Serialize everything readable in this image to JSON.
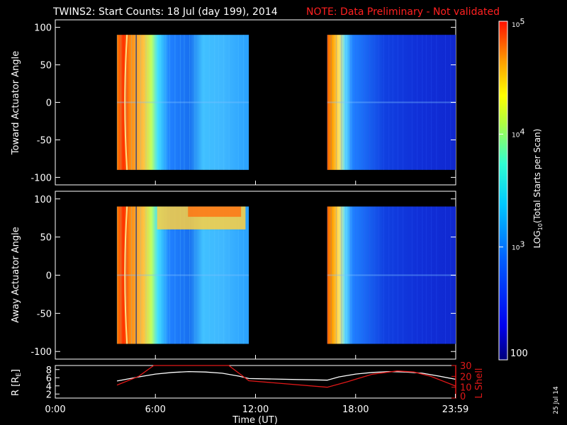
{
  "header": {
    "title": "TWINS2: Start Counts: 18 Jul (day 199), 2014",
    "note": "NOTE: Data Preliminary - Not validated"
  },
  "stamp": "25 Jul 14",
  "colors": {
    "background": "#000000",
    "axes": "#ffffff",
    "note": "#ff2020",
    "lshell": "#e01818",
    "radius": "#ffffff"
  },
  "chart_data": [
    {
      "type": "heatmap",
      "ylabel": "Toward Actuator Angle",
      "ylim": [
        -110,
        110
      ],
      "yticks": [
        100,
        50,
        0,
        -50,
        -100
      ],
      "xlim": [
        0,
        24
      ],
      "segments": [
        {
          "start_hour": 3.7,
          "end_hour": 11.6,
          "peak_hour": 4.3,
          "edge_end_hour": 6.1
        },
        {
          "start_hour": 16.3,
          "end_hour": 24.0,
          "peak_hour": 16.5,
          "edge_end_hour": 17.6
        }
      ],
      "angle_range": [
        -90,
        90
      ]
    },
    {
      "type": "heatmap",
      "ylabel": "Away Actuator Angle",
      "ylim": [
        -110,
        110
      ],
      "yticks": [
        100,
        50,
        0,
        -50,
        -100
      ],
      "xlim": [
        0,
        24
      ],
      "segments": [
        {
          "start_hour": 3.7,
          "end_hour": 11.6,
          "peak_hour": 4.3,
          "edge_end_hour": 6.1
        },
        {
          "start_hour": 16.3,
          "end_hour": 24.0,
          "peak_hour": 16.5,
          "edge_end_hour": 17.6
        }
      ],
      "angle_range": [
        -90,
        90
      ],
      "high_band": {
        "start_hour": 6.1,
        "end_hour": 11.4,
        "angle_min": 60,
        "angle_max": 90
      }
    },
    {
      "type": "line",
      "xlabel": "Time (UT)",
      "xticks": [
        "0:00",
        "6:00",
        "12:00",
        "18:00",
        "23:59"
      ],
      "xtick_hours": [
        0,
        6,
        12,
        18,
        23.98
      ],
      "ylabel_left": "R [Rᴇ]",
      "ylabel_left_main": "R [R",
      "ylabel_left_sub": "E",
      "ylabel_left_end": "]",
      "yticks_left": [
        8,
        6,
        4,
        2
      ],
      "ylim_left": [
        1,
        9
      ],
      "ylabel_right": "L Shell",
      "yticks_right": [
        30,
        20,
        10
      ],
      "ylim_right": [
        0,
        30
      ],
      "series": [
        {
          "name": "R",
          "axis": "left",
          "color": "#ffffff",
          "x": [
            3.7,
            5.0,
            6.0,
            7.0,
            8.0,
            9.0,
            10.0,
            11.0,
            11.6,
            16.3,
            17.0,
            18.0,
            19.0,
            20.0,
            21.0,
            22.0,
            23.0,
            24.0
          ],
          "y": [
            5.2,
            6.2,
            6.9,
            7.3,
            7.5,
            7.4,
            7.1,
            6.4,
            5.8,
            5.4,
            6.2,
            6.9,
            7.3,
            7.5,
            7.4,
            7.1,
            6.4,
            5.6
          ]
        },
        {
          "name": "L Shell",
          "axis": "right",
          "color": "#e01818",
          "x": [
            3.7,
            5.0,
            5.9,
            10.4,
            11.6,
            16.3,
            17.5,
            19.0,
            20.5,
            21.5,
            22.5,
            24.0
          ],
          "y": [
            12,
            20,
            30,
            30,
            16,
            10,
            15,
            22,
            25,
            24,
            20,
            11
          ]
        }
      ]
    }
  ],
  "colorbar": {
    "label": "LOG",
    "label_sub": "10",
    "label_end": "(Total Starts per Scan)",
    "ticks": [
      {
        "base": "10",
        "exp": "5",
        "value": 5
      },
      {
        "base": "10",
        "exp": "4",
        "value": 4
      },
      {
        "base": "10",
        "exp": "3",
        "value": 3
      }
    ],
    "bottom_label": "100",
    "range": [
      2,
      5
    ]
  }
}
